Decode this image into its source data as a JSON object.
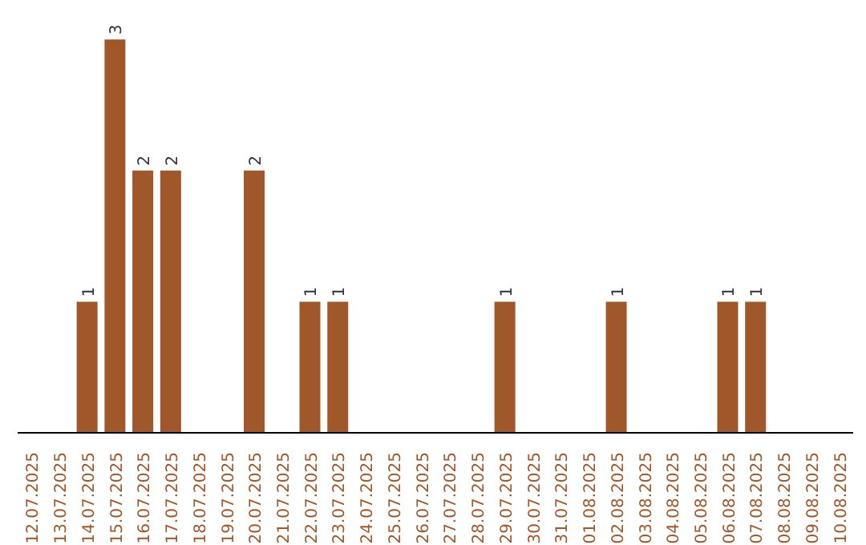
{
  "chart_data": {
    "type": "bar",
    "categories": [
      "12.07.2025",
      "13.07.2025",
      "14.07.2025",
      "15.07.2025",
      "16.07.2025",
      "17.07.2025",
      "18.07.2025",
      "19.07.2025",
      "20.07.2025",
      "21.07.2025",
      "22.07.2025",
      "23.07.2025",
      "24.07.2025",
      "25.07.2025",
      "26.07.2025",
      "27.07.2025",
      "28.07.2025",
      "29.07.2025",
      "30.07.2025",
      "31.07.2025",
      "01.08.2025",
      "02.08.2025",
      "03.08.2025",
      "04.08.2025",
      "05.08.2025",
      "06.08.2025",
      "07.08.2025",
      "08.08.2025",
      "09.08.2025",
      "10.08.2025"
    ],
    "values": [
      0,
      0,
      1,
      3,
      2,
      2,
      0,
      0,
      2,
      0,
      1,
      1,
      0,
      0,
      0,
      0,
      0,
      1,
      0,
      0,
      0,
      1,
      0,
      0,
      0,
      1,
      1,
      0,
      0,
      0
    ],
    "value_labels": [
      null,
      null,
      "1",
      "3",
      "2",
      "2",
      null,
      null,
      "2",
      null,
      "1",
      "1",
      null,
      null,
      null,
      null,
      null,
      "1",
      null,
      null,
      null,
      "1",
      null,
      null,
      null,
      "1",
      "1",
      null,
      null,
      null
    ],
    "color": "#a0572a"
  }
}
